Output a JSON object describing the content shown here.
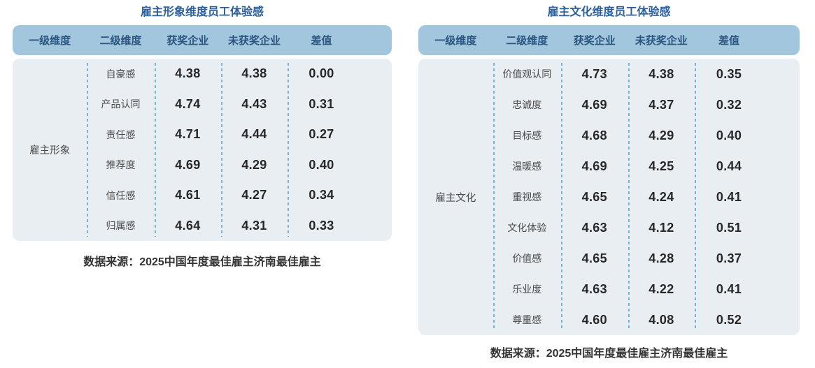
{
  "colors": {
    "title_text": "#2d5f9b",
    "header_bg": "#a2c6dd",
    "header_text": "#2b5681",
    "body_bg": "#e9eef3",
    "dash_line": "#70b4e0",
    "number_text": "#272727",
    "label_text": "#4a4a4a",
    "source_text": "#333333"
  },
  "tables": [
    {
      "title": "雇主形象维度员工体验感",
      "columns": [
        "一级维度",
        "二级维度",
        "获奖企业",
        "未获奖企业",
        "差值"
      ],
      "dimension": "雇主形象",
      "rows": [
        {
          "label": "自豪感",
          "awarded": "4.38",
          "non_awarded": "4.38",
          "diff": "0.00"
        },
        {
          "label": "产品认同",
          "awarded": "4.74",
          "non_awarded": "4.43",
          "diff": "0.31"
        },
        {
          "label": "责任感",
          "awarded": "4.71",
          "non_awarded": "4.44",
          "diff": "0.27"
        },
        {
          "label": "推荐度",
          "awarded": "4.69",
          "non_awarded": "4.29",
          "diff": "0.40"
        },
        {
          "label": "信任感",
          "awarded": "4.61",
          "non_awarded": "4.27",
          "diff": "0.34"
        },
        {
          "label": "归属感",
          "awarded": "4.64",
          "non_awarded": "4.31",
          "diff": "0.33"
        }
      ],
      "source": "数据来源：2025中国年度最佳雇主济南最佳雇主"
    },
    {
      "title": "雇主文化维度员工体验感",
      "columns": [
        "一级维度",
        "二级维度",
        "获奖企业",
        "未获奖企业",
        "差值"
      ],
      "dimension": "雇主文化",
      "rows": [
        {
          "label": "价值观认同",
          "awarded": "4.73",
          "non_awarded": "4.38",
          "diff": "0.35"
        },
        {
          "label": "忠诚度",
          "awarded": "4.69",
          "non_awarded": "4.37",
          "diff": "0.32"
        },
        {
          "label": "目标感",
          "awarded": "4.68",
          "non_awarded": "4.29",
          "diff": "0.40"
        },
        {
          "label": "温暖感",
          "awarded": "4.69",
          "non_awarded": "4.25",
          "diff": "0.44"
        },
        {
          "label": "重视感",
          "awarded": "4.65",
          "non_awarded": "4.24",
          "diff": "0.41"
        },
        {
          "label": "文化体验",
          "awarded": "4.63",
          "non_awarded": "4.12",
          "diff": "0.51"
        },
        {
          "label": "价值感",
          "awarded": "4.65",
          "non_awarded": "4.28",
          "diff": "0.37"
        },
        {
          "label": "乐业度",
          "awarded": "4.63",
          "non_awarded": "4.22",
          "diff": "0.41"
        },
        {
          "label": "尊重感",
          "awarded": "4.60",
          "non_awarded": "4.08",
          "diff": "0.52"
        }
      ],
      "source": "数据来源：2025中国年度最佳雇主济南最佳雇主"
    }
  ],
  "chart_data": [
    {
      "type": "table",
      "title": "雇主形象维度员工体验感",
      "columns": [
        "一级维度",
        "二级维度",
        "获奖企业",
        "未获奖企业",
        "差值"
      ],
      "primary_dimension": "雇主形象",
      "rows": [
        [
          "雇主形象",
          "自豪感",
          4.38,
          4.38,
          0.0
        ],
        [
          "雇主形象",
          "产品认同",
          4.74,
          4.43,
          0.31
        ],
        [
          "雇主形象",
          "责任感",
          4.71,
          4.44,
          0.27
        ],
        [
          "雇主形象",
          "推荐度",
          4.69,
          4.29,
          0.4
        ],
        [
          "雇主形象",
          "信任感",
          4.61,
          4.27,
          0.34
        ],
        [
          "雇主形象",
          "归属感",
          4.64,
          4.31,
          0.33
        ]
      ],
      "source": "数据来源：2025中国年度最佳雇主济南最佳雇主"
    },
    {
      "type": "table",
      "title": "雇主文化维度员工体验感",
      "columns": [
        "一级维度",
        "二级维度",
        "获奖企业",
        "未获奖企业",
        "差值"
      ],
      "primary_dimension": "雇主文化",
      "rows": [
        [
          "雇主文化",
          "价值观认同",
          4.73,
          4.38,
          0.35
        ],
        [
          "雇主文化",
          "忠诚度",
          4.69,
          4.37,
          0.32
        ],
        [
          "雇主文化",
          "目标感",
          4.68,
          4.29,
          0.4
        ],
        [
          "雇主文化",
          "温暖感",
          4.69,
          4.25,
          0.44
        ],
        [
          "雇主文化",
          "重视感",
          4.65,
          4.24,
          0.41
        ],
        [
          "雇主文化",
          "文化体验",
          4.63,
          4.12,
          0.51
        ],
        [
          "雇主文化",
          "价值感",
          4.65,
          4.28,
          0.37
        ],
        [
          "雇主文化",
          "乐业度",
          4.63,
          4.22,
          0.41
        ],
        [
          "雇主文化",
          "尊重感",
          4.6,
          4.08,
          0.52
        ]
      ],
      "source": "数据来源：2025中国年度最佳雇主济南最佳雇主"
    }
  ]
}
